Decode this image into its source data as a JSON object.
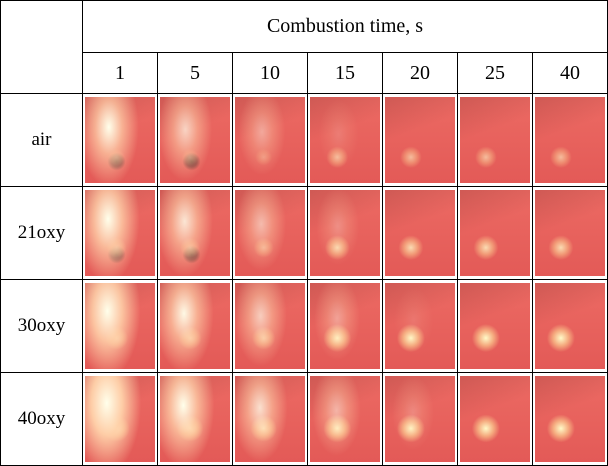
{
  "header": {
    "title": "Combustion time, s",
    "times": [
      1,
      5,
      10,
      15,
      20,
      25,
      40
    ]
  },
  "rows": [
    {
      "label": "air"
    },
    {
      "label": "21oxy"
    },
    {
      "label": "30oxy"
    },
    {
      "label": "40oxy"
    }
  ]
}
